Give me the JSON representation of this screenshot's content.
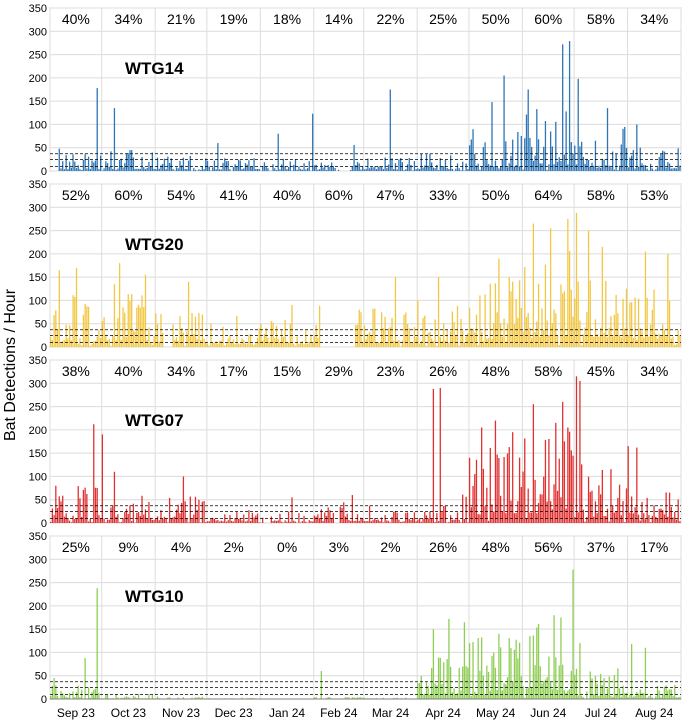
{
  "ylabel": "Bat Detections / Hour",
  "months": [
    "Sep 23",
    "Oct 23",
    "Nov 23",
    "Dec 23",
    "Jan 24",
    "Feb 24",
    "Mar 24",
    "Apr 24",
    "May 24",
    "Jun 24",
    "Jul 24",
    "Aug 24"
  ],
  "yticks": [
    "0",
    "50",
    "100",
    "150",
    "200",
    "250",
    "300",
    "350"
  ],
  "chart_data": [
    {
      "type": "bar",
      "title": "WTG14",
      "color": "#2e75b6",
      "ylim": [
        0,
        350
      ],
      "thresholds": [
        10,
        25,
        37
      ],
      "monthly_pct": [
        "40%",
        "34%",
        "21%",
        "19%",
        "18%",
        "14%",
        "22%",
        "25%",
        "50%",
        "60%",
        "58%",
        "34%"
      ],
      "level": [
        25,
        30,
        22,
        20,
        18,
        14,
        20,
        28,
        60,
        95,
        75,
        35
      ],
      "peaks": [
        {
          "day": 5,
          "v": 48
        },
        {
          "day": 27,
          "v": 178
        },
        {
          "day": 37,
          "v": 135
        },
        {
          "day": 97,
          "v": 60
        },
        {
          "day": 132,
          "v": 80
        },
        {
          "day": 152,
          "v": 123
        },
        {
          "day": 176,
          "v": 56
        },
        {
          "day": 197,
          "v": 175
        },
        {
          "day": 256,
          "v": 148
        },
        {
          "day": 263,
          "v": 205
        },
        {
          "day": 277,
          "v": 175
        },
        {
          "day": 297,
          "v": 272
        },
        {
          "day": 301,
          "v": 279
        },
        {
          "day": 306,
          "v": 198
        },
        {
          "day": 323,
          "v": 135
        },
        {
          "day": 340,
          "v": 100
        }
      ],
      "gaps": [
        [
          0,
          4
        ],
        [
          168,
          173
        ]
      ]
    },
    {
      "type": "bar",
      "title": "WTG20",
      "color": "#f2c744",
      "ylim": [
        0,
        350
      ],
      "thresholds": [
        10,
        25,
        37
      ],
      "monthly_pct": [
        "52%",
        "60%",
        "54%",
        "41%",
        "40%",
        "60%",
        "47%",
        "33%",
        "50%",
        "64%",
        "58%",
        "53%"
      ],
      "level": [
        85,
        90,
        70,
        45,
        40,
        65,
        55,
        70,
        115,
        140,
        135,
        105
      ],
      "peaks": [
        {
          "day": 5,
          "v": 165
        },
        {
          "day": 15,
          "v": 170
        },
        {
          "day": 40,
          "v": 180
        },
        {
          "day": 55,
          "v": 155
        },
        {
          "day": 80,
          "v": 140
        },
        {
          "day": 140,
          "v": 90
        },
        {
          "day": 170,
          "v": 165
        },
        {
          "day": 200,
          "v": 150
        },
        {
          "day": 225,
          "v": 150
        },
        {
          "day": 260,
          "v": 190
        },
        {
          "day": 280,
          "v": 265
        },
        {
          "day": 290,
          "v": 255
        },
        {
          "day": 300,
          "v": 275
        },
        {
          "day": 305,
          "v": 288
        },
        {
          "day": 312,
          "v": 250
        },
        {
          "day": 320,
          "v": 215
        },
        {
          "day": 345,
          "v": 205
        },
        {
          "day": 358,
          "v": 200
        }
      ],
      "gaps": [
        [
          66,
          70
        ],
        [
          160,
          164
        ],
        [
          157,
          176
        ]
      ]
    },
    {
      "type": "bar",
      "title": "WTG07",
      "color": "#e03030",
      "ylim": [
        0,
        350
      ],
      "thresholds": [
        10,
        25,
        37
      ],
      "monthly_pct": [
        "38%",
        "40%",
        "34%",
        "17%",
        "15%",
        "29%",
        "23%",
        "26%",
        "48%",
        "58%",
        "45%",
        "34%"
      ],
      "level": [
        55,
        45,
        40,
        20,
        18,
        30,
        25,
        45,
        110,
        150,
        85,
        45
      ],
      "peaks": [
        {
          "day": 3,
          "v": 80
        },
        {
          "day": 25,
          "v": 212
        },
        {
          "day": 30,
          "v": 190
        },
        {
          "day": 37,
          "v": 110
        },
        {
          "day": 77,
          "v": 100
        },
        {
          "day": 140,
          "v": 55
        },
        {
          "day": 175,
          "v": 60
        },
        {
          "day": 222,
          "v": 288
        },
        {
          "day": 226,
          "v": 290
        },
        {
          "day": 243,
          "v": 140
        },
        {
          "day": 250,
          "v": 205
        },
        {
          "day": 258,
          "v": 220
        },
        {
          "day": 268,
          "v": 195
        },
        {
          "day": 280,
          "v": 255
        },
        {
          "day": 293,
          "v": 215
        },
        {
          "day": 297,
          "v": 260
        },
        {
          "day": 300,
          "v": 205
        },
        {
          "day": 305,
          "v": 315
        },
        {
          "day": 307,
          "v": 305
        },
        {
          "day": 335,
          "v": 165
        },
        {
          "day": 340,
          "v": 162
        }
      ],
      "gaps": [
        [
          124,
          127
        ],
        [
          165,
          167
        ]
      ]
    },
    {
      "type": "bar",
      "title": "WTG10",
      "color": "#8fce55",
      "ylim": [
        0,
        350
      ],
      "thresholds": [
        10,
        25,
        37
      ],
      "monthly_pct": [
        "25%",
        "9%",
        "4%",
        "2%",
        "0%",
        "3%",
        "2%",
        "26%",
        "48%",
        "56%",
        "37%",
        "17%"
      ],
      "level": [
        20,
        8,
        4,
        2,
        0,
        3,
        2,
        65,
        100,
        110,
        45,
        25
      ],
      "peaks": [
        {
          "day": 2,
          "v": 45
        },
        {
          "day": 20,
          "v": 88
        },
        {
          "day": 27,
          "v": 238
        },
        {
          "day": 157,
          "v": 60
        },
        {
          "day": 222,
          "v": 150
        },
        {
          "day": 231,
          "v": 172
        },
        {
          "day": 240,
          "v": 165
        },
        {
          "day": 260,
          "v": 140
        },
        {
          "day": 278,
          "v": 135
        },
        {
          "day": 292,
          "v": 180
        },
        {
          "day": 296,
          "v": 175
        },
        {
          "day": 303,
          "v": 278
        },
        {
          "day": 307,
          "v": 120
        },
        {
          "day": 337,
          "v": 118
        },
        {
          "day": 345,
          "v": 110
        }
      ],
      "gaps": []
    }
  ]
}
